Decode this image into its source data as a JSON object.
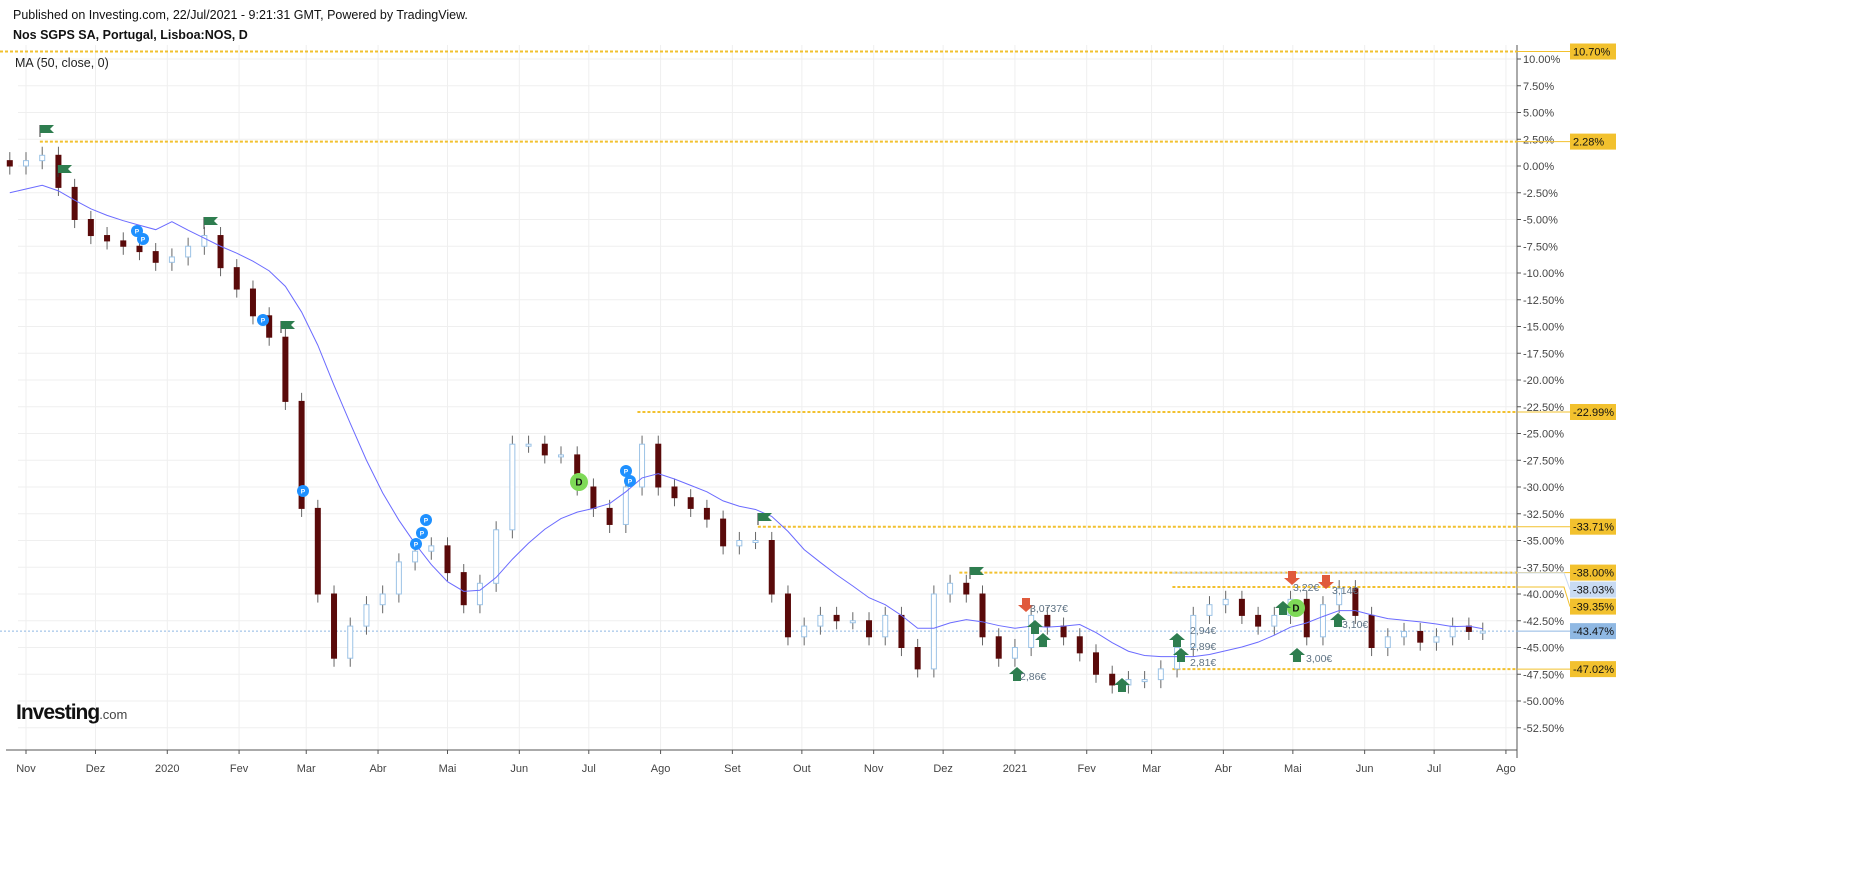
{
  "header": {
    "published": "Published on Investing.com, 22/Jul/2021 - 9:21:31 GMT, Powered by TradingView.",
    "title": "Nos SGPS SA, Portugal, Lisboa:NOS, D",
    "indicator": "MA (50, close, 0)"
  },
  "logo": {
    "main": "Investing",
    "suffix": ".com"
  },
  "colors": {
    "up": "#9cc3e6",
    "down": "#5a0a0a",
    "ma": "#6b6bff",
    "level": "#f2c12e",
    "last": "#8fb8e3",
    "flag": "#2e7d4f",
    "pmark": "#1e90ff",
    "dmark": "#7ed957",
    "arrow_down": "#e05a3c"
  },
  "chart_data": {
    "type": "candlestick",
    "title": "Nos SGPS SA, Portugal, Lisboa:NOS, D",
    "ylabel": "",
    "y_unit": "%",
    "ylim": [
      -52.5,
      10.7
    ],
    "grid": true,
    "x_ticks": [
      {
        "label": "Nov",
        "date": "2019-11-01"
      },
      {
        "label": "Dez",
        "date": "2019-12-01"
      },
      {
        "label": "2020",
        "date": "2020-01-01"
      },
      {
        "label": "Fev",
        "date": "2020-02-01"
      },
      {
        "label": "Mar",
        "date": "2020-03-01"
      },
      {
        "label": "Abr",
        "date": "2020-04-01"
      },
      {
        "label": "Mai",
        "date": "2020-05-01"
      },
      {
        "label": "Jun",
        "date": "2020-06-01"
      },
      {
        "label": "Jul",
        "date": "2020-07-01"
      },
      {
        "label": "Ago",
        "date": "2020-08-01"
      },
      {
        "label": "Set",
        "date": "2020-09-01"
      },
      {
        "label": "Out",
        "date": "2020-10-01"
      },
      {
        "label": "Nov",
        "date": "2020-11-01"
      },
      {
        "label": "Dez",
        "date": "2020-12-01"
      },
      {
        "label": "2021",
        "date": "2021-01-01"
      },
      {
        "label": "Fev",
        "date": "2021-02-01"
      },
      {
        "label": "Mar",
        "date": "2021-03-01"
      },
      {
        "label": "Abr",
        "date": "2021-04-01"
      },
      {
        "label": "Mai",
        "date": "2021-05-01"
      },
      {
        "label": "Jun",
        "date": "2021-06-01"
      },
      {
        "label": "Jul",
        "date": "2021-07-01"
      },
      {
        "label": "Ago",
        "date": "2021-08-01"
      }
    ],
    "y_ticks": [
      "10.00%",
      "7.50%",
      "5.00%",
      "2.50%",
      "0.00%",
      "-2.50%",
      "-5.00%",
      "-7.50%",
      "-10.00%",
      "-12.50%",
      "-15.00%",
      "-17.50%",
      "-20.00%",
      "-22.50%",
      "-25.00%",
      "-27.50%",
      "-30.00%",
      "-32.50%",
      "-35.00%",
      "-37.50%",
      "-40.00%",
      "-42.50%",
      "-45.00%",
      "-47.50%",
      "-50.00%",
      "-52.50%"
    ],
    "y_tick_values": [
      10,
      7.5,
      5,
      2.5,
      0,
      -2.5,
      -5,
      -7.5,
      -10,
      -12.5,
      -15,
      -17.5,
      -20,
      -22.5,
      -25,
      -27.5,
      -30,
      -32.5,
      -35,
      -37.5,
      -40,
      -42.5,
      -45,
      -47.5,
      -50,
      -52.5
    ],
    "x": [
      "2019-10-25",
      "2019-11-01",
      "2019-11-08",
      "2019-11-15",
      "2019-11-22",
      "2019-11-29",
      "2019-12-06",
      "2019-12-13",
      "2019-12-20",
      "2019-12-27",
      "2020-01-03",
      "2020-01-10",
      "2020-01-17",
      "2020-01-24",
      "2020-01-31",
      "2020-02-07",
      "2020-02-14",
      "2020-02-21",
      "2020-02-28",
      "2020-03-06",
      "2020-03-13",
      "2020-03-20",
      "2020-03-27",
      "2020-04-03",
      "2020-04-10",
      "2020-04-17",
      "2020-04-24",
      "2020-05-01",
      "2020-05-08",
      "2020-05-15",
      "2020-05-22",
      "2020-05-29",
      "2020-06-05",
      "2020-06-12",
      "2020-06-19",
      "2020-06-26",
      "2020-07-03",
      "2020-07-10",
      "2020-07-17",
      "2020-07-24",
      "2020-07-31",
      "2020-08-07",
      "2020-08-14",
      "2020-08-21",
      "2020-08-28",
      "2020-09-04",
      "2020-09-11",
      "2020-09-18",
      "2020-09-25",
      "2020-10-02",
      "2020-10-09",
      "2020-10-16",
      "2020-10-23",
      "2020-10-30",
      "2020-11-06",
      "2020-11-13",
      "2020-11-20",
      "2020-11-27",
      "2020-12-04",
      "2020-12-11",
      "2020-12-18",
      "2020-12-25",
      "2021-01-01",
      "2021-01-08",
      "2021-01-15",
      "2021-01-22",
      "2021-01-29",
      "2021-02-05",
      "2021-02-12",
      "2021-02-19",
      "2021-02-26",
      "2021-03-05",
      "2021-03-12",
      "2021-03-19",
      "2021-03-26",
      "2021-04-02",
      "2021-04-09",
      "2021-04-16",
      "2021-04-23",
      "2021-04-30",
      "2021-05-07",
      "2021-05-14",
      "2021-05-21",
      "2021-05-28",
      "2021-06-04",
      "2021-06-11",
      "2021-06-18",
      "2021-06-25",
      "2021-07-02",
      "2021-07-09",
      "2021-07-16",
      "2021-07-22"
    ],
    "series": [
      {
        "values": [
          0,
          0.5,
          1,
          -2,
          -5,
          -6.5,
          -7,
          -7.5,
          -8,
          -9,
          -8.5,
          -7.5,
          -6.5,
          -9.5,
          -11.5,
          -14,
          -16,
          -22,
          -32,
          -40,
          -46,
          -43,
          -41,
          -40,
          -37,
          -36,
          -35.5,
          -38,
          -41,
          -39,
          -34,
          -26,
          -26,
          -27,
          -27,
          -30,
          -32,
          -33.5,
          -30,
          -26,
          -30,
          -31,
          -32,
          -33,
          -35.5,
          -35,
          -35,
          -40,
          -44,
          -43,
          -42,
          -42.5,
          -42.5,
          -44,
          -42,
          -45,
          -47,
          -40,
          -39,
          -40,
          -44,
          -46,
          -45,
          -42,
          -43,
          -44,
          -45.5,
          -47.5,
          -48.5,
          -48,
          -48,
          -47,
          -45,
          -42,
          -41,
          -40.5,
          -42,
          -43,
          -42,
          -40.5,
          -44,
          -41,
          -39.5,
          -42,
          -45,
          -44,
          -43.5,
          -44.5,
          -44,
          -43,
          -43.5,
          -43.47
        ]
      }
    ],
    "moving_average": {
      "label": "MA (50, close, 0)",
      "period_days": 50
    },
    "levels": [
      {
        "value": 10.7,
        "label": "10.70%",
        "from": "2019-10-20",
        "kind": "level"
      },
      {
        "value": 2.28,
        "label": "2.28%",
        "from": "2019-11-07",
        "kind": "level"
      },
      {
        "value": -22.99,
        "label": "-22.99%",
        "from": "2020-07-22",
        "kind": "level"
      },
      {
        "value": -33.71,
        "label": "-33.71%",
        "from": "2020-09-12",
        "kind": "level"
      },
      {
        "value": -38.0,
        "label": "-38.00%",
        "from": "2020-12-08",
        "kind": "level"
      },
      {
        "value": -38.03,
        "label": "-38.03%",
        "from": "2021-03-10",
        "kind": "ref"
      },
      {
        "value": -39.35,
        "label": "-39.35%",
        "from": "2021-03-10",
        "kind": "level"
      },
      {
        "value": -43.47,
        "label": "-43.47%",
        "from": "2019-10-20",
        "kind": "last"
      },
      {
        "value": -47.02,
        "label": "-47.02%",
        "from": "2021-03-10",
        "kind": "level"
      }
    ],
    "annotations": [
      "3,0737€",
      "2,86€",
      "3,22€",
      "3,14€",
      "3,10€",
      "3,00€",
      "2,94€",
      "2,89€",
      "2,81€"
    ]
  }
}
